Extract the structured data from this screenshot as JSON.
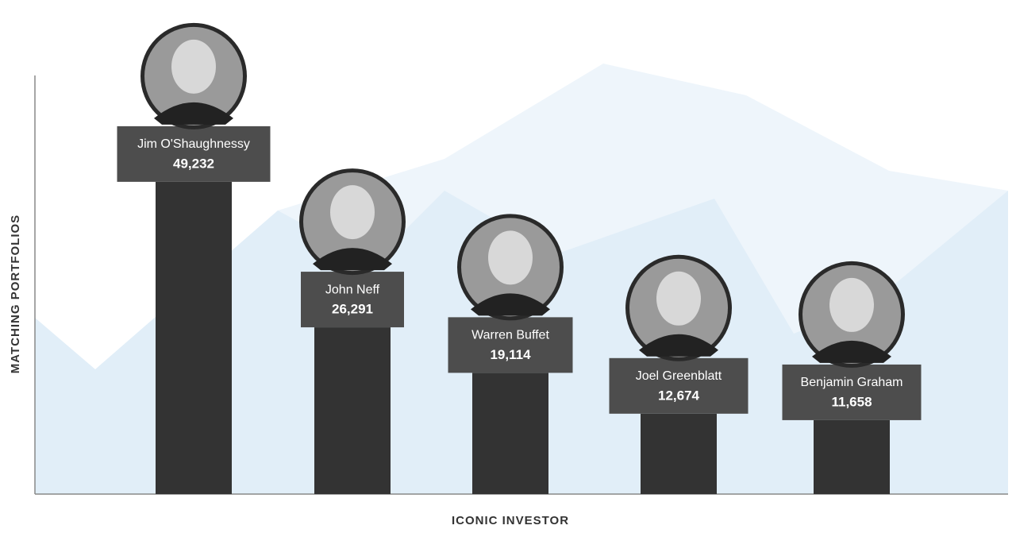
{
  "chart_data": {
    "type": "bar",
    "ylabel": "MATCHING PORTFOLIOS",
    "xlabel": "ICONIC INVESTOR",
    "categories": [
      "Jim O'Shaughnessy",
      "John Neff",
      "Warren Buffet",
      "Joel Greenblatt",
      "Benjamin Graham"
    ],
    "values": [
      49232,
      26291,
      19114,
      12674,
      11658
    ],
    "value_labels": [
      "49,232",
      "26,291",
      "19,114",
      "12,674",
      "11,658"
    ],
    "color": "#333333",
    "ylim": [
      0,
      66000
    ]
  }
}
